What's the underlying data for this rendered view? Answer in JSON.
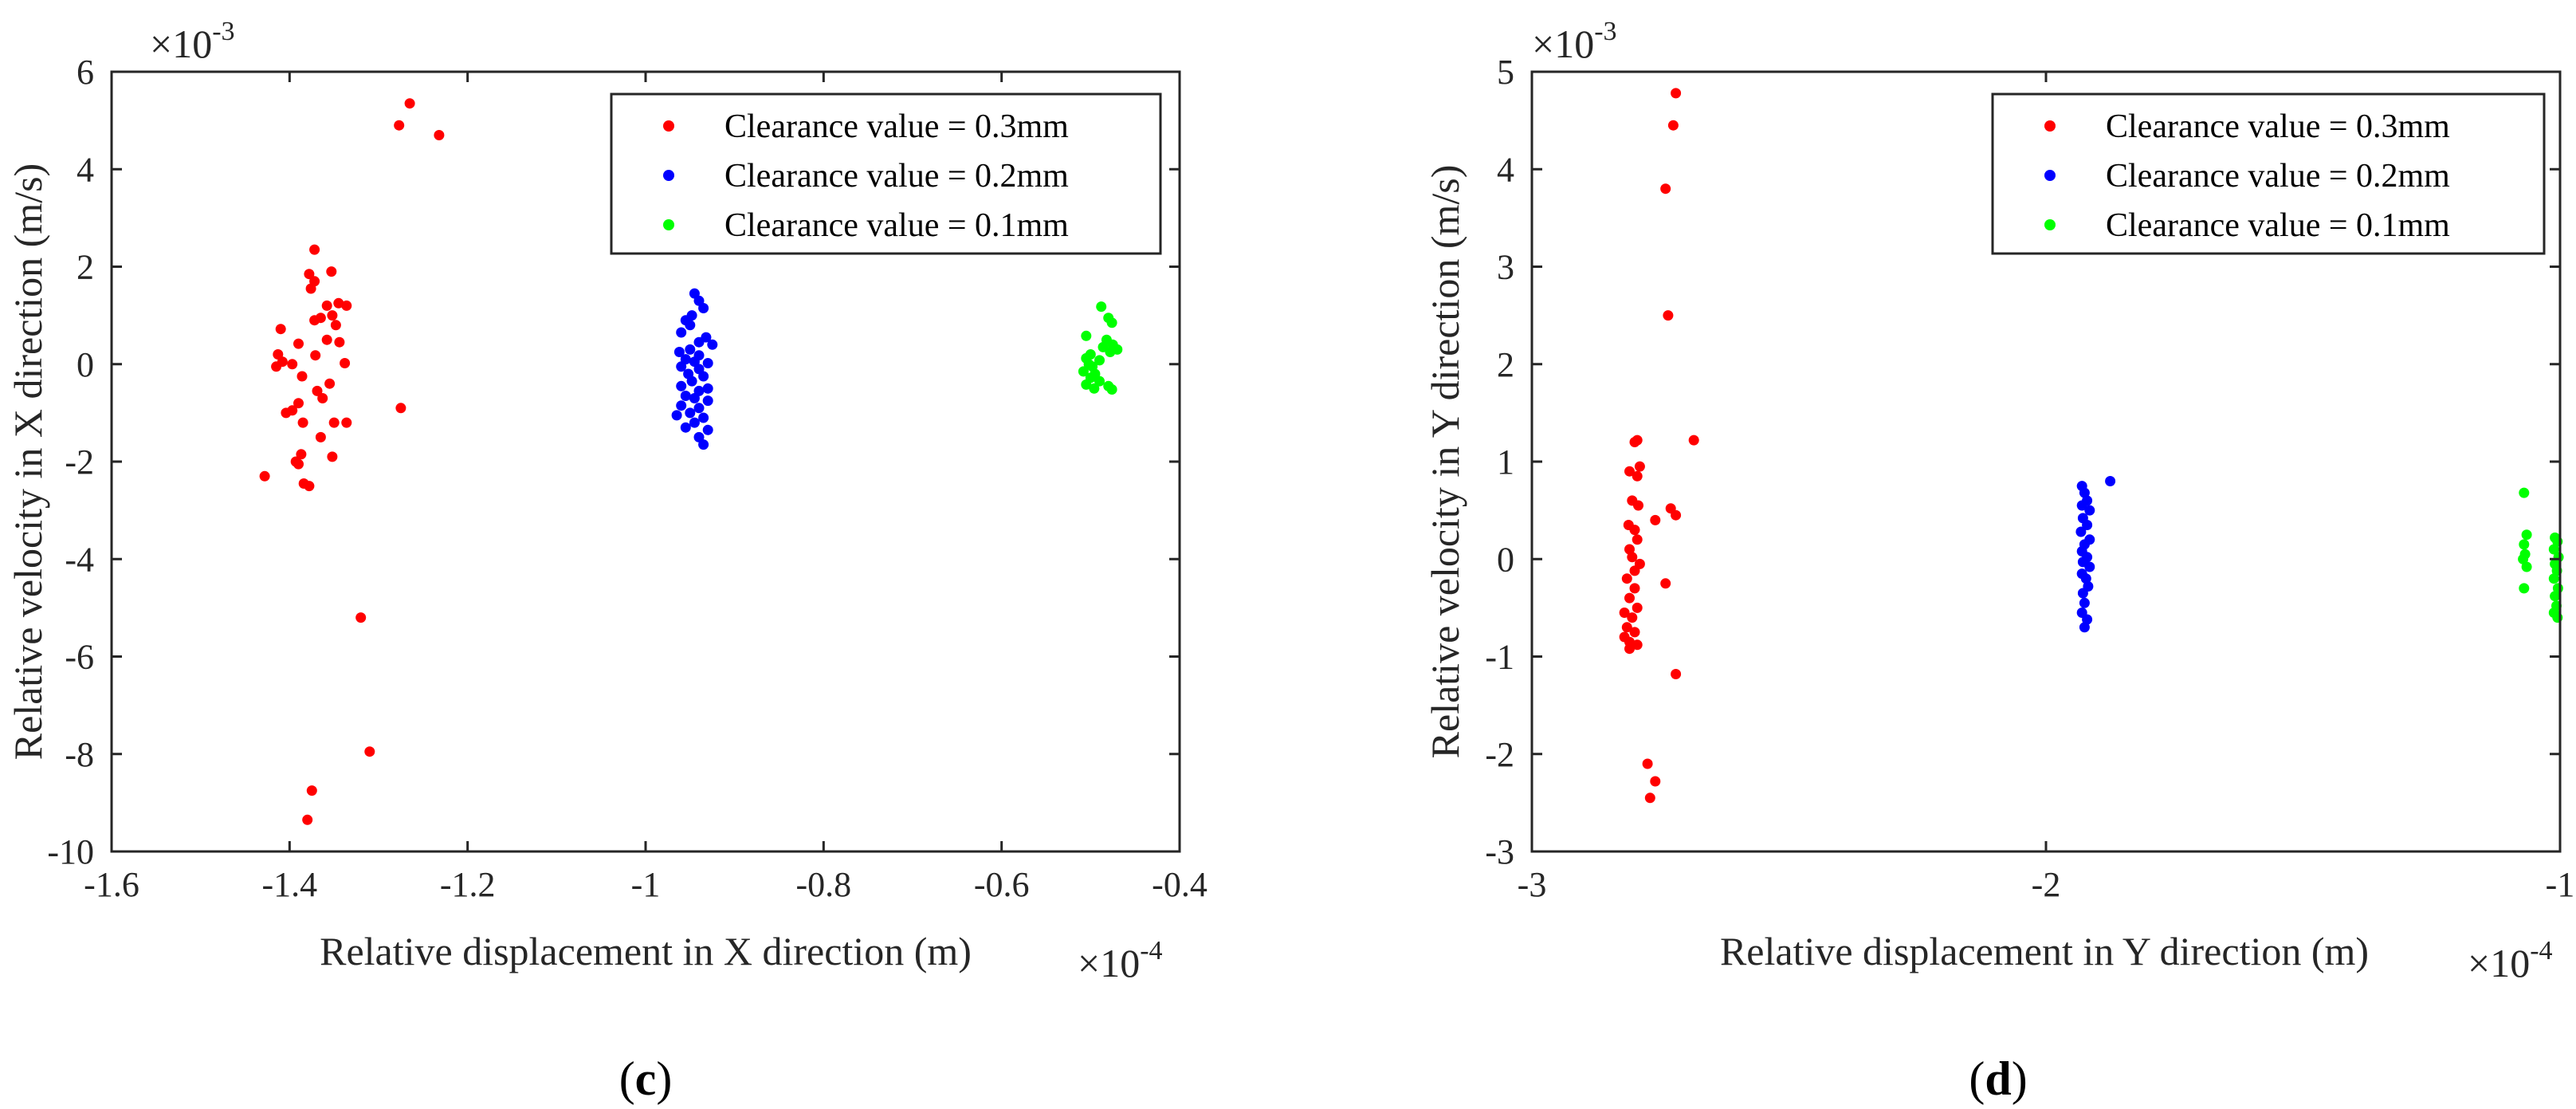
{
  "chart_data": [
    {
      "type": "scatter",
      "caption_letter": "c",
      "xlabel": "Relative displacement in X direction (m)",
      "ylabel": "Relative velocity in X direction (m/s)",
      "x_exponent_label": "×10",
      "x_exponent": "-4",
      "y_exponent_label": "×10",
      "y_exponent": "-3",
      "xlim": [
        -1.6,
        -0.4
      ],
      "ylim": [
        -10,
        6
      ],
      "xticks": [
        -1.6,
        -1.4,
        -1.2,
        -1,
        -0.8,
        -0.6,
        -0.4
      ],
      "xtick_labels": [
        "-1.6",
        "-1.4",
        "-1.2",
        "-1",
        "-0.8",
        "-0.6",
        "-0.4"
      ],
      "yticks": [
        -10,
        -8,
        -6,
        -4,
        -2,
        0,
        2,
        4,
        6
      ],
      "ytick_labels": [
        "-10",
        "-8",
        "-6",
        "-4",
        "-2",
        "0",
        "2",
        "4",
        "6"
      ],
      "legend_position": "top-right",
      "series": [
        {
          "name": "Clearance value = 0.3mm",
          "color": "#ff0000",
          "points": [
            [
              -1.265,
              5.35
            ],
            [
              -1.277,
              4.9
            ],
            [
              -1.232,
              4.7
            ],
            [
              -1.372,
              2.35
            ],
            [
              -1.353,
              1.9
            ],
            [
              -1.378,
              1.85
            ],
            [
              -1.372,
              1.7
            ],
            [
              -1.376,
              1.55
            ],
            [
              -1.345,
              1.25
            ],
            [
              -1.358,
              1.2
            ],
            [
              -1.336,
              1.2
            ],
            [
              -1.352,
              1.0
            ],
            [
              -1.365,
              0.95
            ],
            [
              -1.372,
              0.9
            ],
            [
              -1.348,
              0.8
            ],
            [
              -1.41,
              0.72
            ],
            [
              -1.358,
              0.5
            ],
            [
              -1.344,
              0.45
            ],
            [
              -1.39,
              0.42
            ],
            [
              -1.413,
              0.2
            ],
            [
              -1.371,
              0.18
            ],
            [
              -1.408,
              0.05
            ],
            [
              -1.397,
              0.0
            ],
            [
              -1.338,
              0.02
            ],
            [
              -1.415,
              -0.05
            ],
            [
              -1.386,
              -0.25
            ],
            [
              -1.355,
              -0.4
            ],
            [
              -1.369,
              -0.55
            ],
            [
              -1.363,
              -0.7
            ],
            [
              -1.39,
              -0.8
            ],
            [
              -1.397,
              -0.95
            ],
            [
              -1.404,
              -1.0
            ],
            [
              -1.275,
              -0.9
            ],
            [
              -1.385,
              -1.2
            ],
            [
              -1.35,
              -1.2
            ],
            [
              -1.336,
              -1.2
            ],
            [
              -1.365,
              -1.5
            ],
            [
              -1.387,
              -1.85
            ],
            [
              -1.352,
              -1.9
            ],
            [
              -1.393,
              -2.0
            ],
            [
              -1.39,
              -2.05
            ],
            [
              -1.428,
              -2.3
            ],
            [
              -1.384,
              -2.45
            ],
            [
              -1.378,
              -2.5
            ],
            [
              -1.32,
              -5.2
            ],
            [
              -1.31,
              -7.95
            ],
            [
              -1.375,
              -8.75
            ],
            [
              -1.38,
              -9.35
            ]
          ]
        },
        {
          "name": "Clearance value = 0.2mm",
          "color": "#0000ff",
          "points": [
            [
              -0.945,
              1.45
            ],
            [
              -0.94,
              1.3
            ],
            [
              -0.935,
              1.15
            ],
            [
              -0.948,
              1.0
            ],
            [
              -0.955,
              0.9
            ],
            [
              -0.95,
              0.8
            ],
            [
              -0.96,
              0.65
            ],
            [
              -0.932,
              0.55
            ],
            [
              -0.94,
              0.45
            ],
            [
              -0.925,
              0.4
            ],
            [
              -0.95,
              0.3
            ],
            [
              -0.962,
              0.25
            ],
            [
              -0.94,
              0.18
            ],
            [
              -0.955,
              0.1
            ],
            [
              -0.945,
              0.05
            ],
            [
              -0.93,
              0.02
            ],
            [
              -0.96,
              -0.05
            ],
            [
              -0.94,
              -0.1
            ],
            [
              -0.952,
              -0.2
            ],
            [
              -0.935,
              -0.25
            ],
            [
              -0.948,
              -0.35
            ],
            [
              -0.96,
              -0.45
            ],
            [
              -0.93,
              -0.5
            ],
            [
              -0.94,
              -0.55
            ],
            [
              -0.955,
              -0.65
            ],
            [
              -0.945,
              -0.7
            ],
            [
              -0.93,
              -0.75
            ],
            [
              -0.96,
              -0.85
            ],
            [
              -0.94,
              -0.9
            ],
            [
              -0.95,
              -1.0
            ],
            [
              -0.965,
              -1.05
            ],
            [
              -0.935,
              -1.1
            ],
            [
              -0.945,
              -1.2
            ],
            [
              -0.955,
              -1.3
            ],
            [
              -0.93,
              -1.35
            ],
            [
              -0.94,
              -1.5
            ],
            [
              -0.935,
              -1.65
            ]
          ]
        },
        {
          "name": "Clearance value = 0.1mm",
          "color": "#00ff00",
          "points": [
            [
              -0.488,
              1.18
            ],
            [
              -0.48,
              0.95
            ],
            [
              -0.476,
              0.85
            ],
            [
              -0.505,
              0.58
            ],
            [
              -0.482,
              0.5
            ],
            [
              -0.475,
              0.4
            ],
            [
              -0.486,
              0.35
            ],
            [
              -0.47,
              0.3
            ],
            [
              -0.478,
              0.25
            ],
            [
              -0.5,
              0.2
            ],
            [
              -0.505,
              0.12
            ],
            [
              -0.49,
              0.08
            ],
            [
              -0.502,
              0.0
            ],
            [
              -0.498,
              -0.05
            ],
            [
              -0.508,
              -0.15
            ],
            [
              -0.495,
              -0.2
            ],
            [
              -0.5,
              -0.28
            ],
            [
              -0.49,
              -0.35
            ],
            [
              -0.505,
              -0.42
            ],
            [
              -0.48,
              -0.45
            ],
            [
              -0.496,
              -0.5
            ],
            [
              -0.476,
              -0.52
            ]
          ]
        }
      ]
    },
    {
      "type": "scatter",
      "caption_letter": "d",
      "xlabel": "Relative displacement in Y direction (m)",
      "ylabel": "Relative velocity in Y direction (m/s)",
      "x_exponent_label": "×10",
      "x_exponent": "-4",
      "y_exponent_label": "×10",
      "y_exponent": "-3",
      "xlim": [
        -3,
        -1
      ],
      "ylim": [
        -3,
        5
      ],
      "xticks": [
        -3,
        -2,
        -1
      ],
      "xtick_labels": [
        "-3",
        "-2",
        "-1"
      ],
      "yticks": [
        -3,
        -2,
        -1,
        0,
        1,
        2,
        3,
        4,
        5
      ],
      "ytick_labels": [
        "-3",
        "-2",
        "-1",
        "0",
        "1",
        "2",
        "3",
        "4",
        "5"
      ],
      "legend_position": "top-right",
      "series": [
        {
          "name": "Clearance value = 0.3mm",
          "color": "#ff0000",
          "points": [
            [
              -2.72,
              4.78
            ],
            [
              -2.725,
              4.45
            ],
            [
              -2.74,
              3.8
            ],
            [
              -2.735,
              2.5
            ],
            [
              -2.685,
              1.22
            ],
            [
              -2.795,
              1.22
            ],
            [
              -2.8,
              1.2
            ],
            [
              -2.79,
              0.95
            ],
            [
              -2.81,
              0.9
            ],
            [
              -2.795,
              0.85
            ],
            [
              -2.805,
              0.6
            ],
            [
              -2.793,
              0.55
            ],
            [
              -2.73,
              0.52
            ],
            [
              -2.72,
              0.45
            ],
            [
              -2.76,
              0.4
            ],
            [
              -2.812,
              0.35
            ],
            [
              -2.8,
              0.3
            ],
            [
              -2.795,
              0.2
            ],
            [
              -2.81,
              0.1
            ],
            [
              -2.805,
              0.02
            ],
            [
              -2.79,
              -0.05
            ],
            [
              -2.8,
              -0.12
            ],
            [
              -2.815,
              -0.2
            ],
            [
              -2.74,
              -0.25
            ],
            [
              -2.8,
              -0.3
            ],
            [
              -2.81,
              -0.4
            ],
            [
              -2.795,
              -0.5
            ],
            [
              -2.82,
              -0.55
            ],
            [
              -2.805,
              -0.6
            ],
            [
              -2.815,
              -0.7
            ],
            [
              -2.8,
              -0.75
            ],
            [
              -2.82,
              -0.8
            ],
            [
              -2.81,
              -0.85
            ],
            [
              -2.795,
              -0.88
            ],
            [
              -2.81,
              -0.92
            ],
            [
              -2.72,
              -1.18
            ],
            [
              -2.775,
              -2.1
            ],
            [
              -2.76,
              -2.28
            ],
            [
              -2.77,
              -2.45
            ]
          ]
        },
        {
          "name": "Clearance value = 0.2mm",
          "color": "#0000ff",
          "points": [
            [
              -1.93,
              0.75
            ],
            [
              -1.875,
              0.8
            ],
            [
              -1.925,
              0.68
            ],
            [
              -1.92,
              0.6
            ],
            [
              -1.93,
              0.55
            ],
            [
              -1.915,
              0.5
            ],
            [
              -1.928,
              0.42
            ],
            [
              -1.92,
              0.35
            ],
            [
              -1.932,
              0.28
            ],
            [
              -1.915,
              0.2
            ],
            [
              -1.925,
              0.15
            ],
            [
              -1.93,
              0.08
            ],
            [
              -1.92,
              0.02
            ],
            [
              -1.928,
              -0.03
            ],
            [
              -1.915,
              -0.08
            ],
            [
              -1.93,
              -0.15
            ],
            [
              -1.922,
              -0.2
            ],
            [
              -1.918,
              -0.28
            ],
            [
              -1.928,
              -0.35
            ],
            [
              -1.925,
              -0.45
            ],
            [
              -1.93,
              -0.55
            ],
            [
              -1.92,
              -0.62
            ],
            [
              -1.925,
              -0.7
            ]
          ]
        },
        {
          "name": "Clearance value = 0.1mm",
          "color": "#00ff00",
          "points": [
            [
              -1.07,
              0.68
            ],
            [
              -1.065,
              0.25
            ],
            [
              -1.07,
              0.15
            ],
            [
              -1.068,
              0.05
            ],
            [
              -1.072,
              0.0
            ],
            [
              -1.065,
              -0.08
            ],
            [
              -1.07,
              -0.3
            ],
            [
              -1.01,
              0.22
            ],
            [
              -1.005,
              0.18
            ],
            [
              -1.012,
              0.1
            ],
            [
              -1.003,
              0.02
            ],
            [
              -1.01,
              -0.05
            ],
            [
              -1.006,
              -0.12
            ],
            [
              -1.012,
              -0.2
            ],
            [
              -1.004,
              -0.3
            ],
            [
              -1.01,
              -0.38
            ],
            [
              -1.007,
              -0.48
            ],
            [
              -1.012,
              -0.55
            ],
            [
              -1.005,
              -0.6
            ]
          ]
        }
      ]
    }
  ]
}
